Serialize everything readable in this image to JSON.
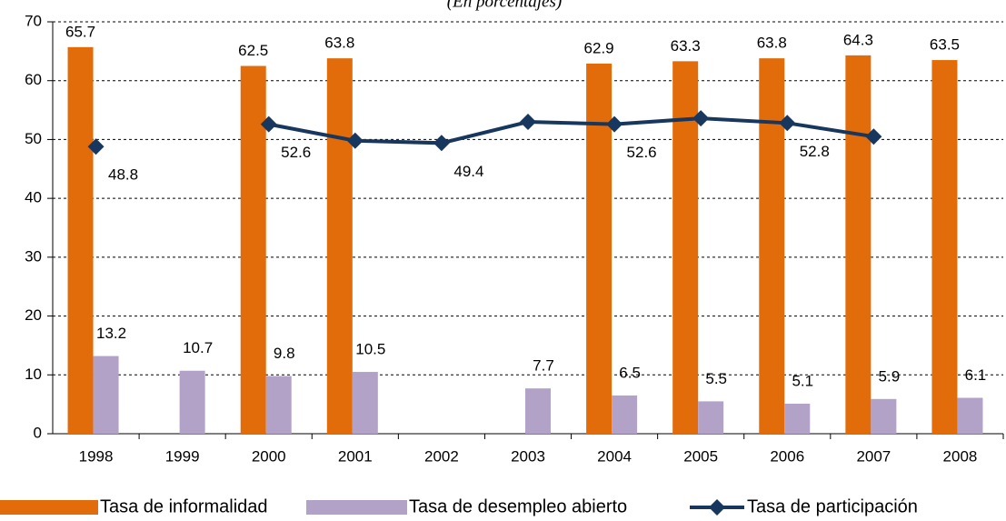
{
  "chart_data": {
    "type": "bar-line",
    "subtitle": "(En porcentajes)",
    "categories": [
      "1998",
      "1999",
      "2000",
      "2001",
      "2002",
      "2003",
      "2004",
      "2005",
      "2006",
      "2007",
      "2008"
    ],
    "series": [
      {
        "name": "Tasa de informalidad",
        "type": "bar",
        "color": "#e36c0a",
        "values": [
          65.7,
          null,
          62.5,
          63.8,
          null,
          null,
          62.9,
          63.3,
          63.8,
          64.3,
          63.5
        ]
      },
      {
        "name": "Tasa de desempleo abierto",
        "type": "bar",
        "color": "#b3a2c7",
        "values": [
          13.2,
          10.7,
          9.8,
          10.5,
          null,
          7.7,
          6.5,
          5.5,
          5.1,
          5.9,
          6.1
        ]
      },
      {
        "name": "Tasa de participación",
        "type": "line",
        "color": "#17375e",
        "values": [
          48.8,
          null,
          52.6,
          49.8,
          49.4,
          53.0,
          52.6,
          53.6,
          52.8,
          50.5,
          null
        ],
        "value_labels": [
          "48.8",
          null,
          "52.6",
          null,
          "49.4",
          null,
          "52.6",
          null,
          "52.8",
          null,
          null
        ]
      }
    ],
    "ylim": [
      0,
      70
    ],
    "yticks": [
      0,
      10,
      20,
      30,
      40,
      50,
      60,
      70
    ],
    "grid": true,
    "legend": "bottom"
  }
}
